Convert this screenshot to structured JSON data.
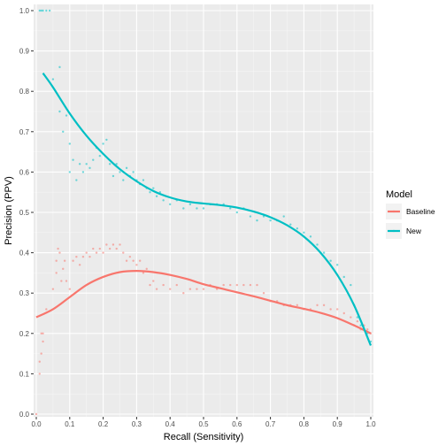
{
  "chart_data": {
    "type": "scatter",
    "xlabel": "Recall (Sensitivity)",
    "ylabel": "Precision (PPV)",
    "xlim": [
      0,
      1
    ],
    "ylim": [
      0,
      1
    ],
    "x_ticks": [
      "0.0",
      "0.1",
      "0.2",
      "0.3",
      "0.4",
      "0.5",
      "0.6",
      "0.7",
      "0.8",
      "0.9",
      "1.0"
    ],
    "y_ticks": [
      "0.0",
      "0.1",
      "0.2",
      "0.3",
      "0.4",
      "0.5",
      "0.6",
      "0.7",
      "0.8",
      "0.9",
      "1.0"
    ],
    "grid": true,
    "legend": {
      "title": "Model",
      "placement": "right",
      "entries": [
        "Baseline",
        "New"
      ]
    },
    "colors": {
      "Baseline": "#F8766D",
      "New": "#00BFC4",
      "panel": "#EBEBEB",
      "grid": "#FFFFFF"
    },
    "series": [
      {
        "name": "Baseline",
        "points": [
          [
            0.0,
            0.0
          ],
          [
            0.01,
            0.1
          ],
          [
            0.01,
            0.13
          ],
          [
            0.015,
            0.15
          ],
          [
            0.015,
            0.2
          ],
          [
            0.02,
            0.18
          ],
          [
            0.02,
            0.2
          ],
          [
            0.03,
            0.26
          ],
          [
            0.05,
            0.31
          ],
          [
            0.06,
            0.35
          ],
          [
            0.06,
            0.38
          ],
          [
            0.065,
            0.41
          ],
          [
            0.07,
            0.4
          ],
          [
            0.075,
            0.33
          ],
          [
            0.08,
            0.36
          ],
          [
            0.085,
            0.38
          ],
          [
            0.09,
            0.33
          ],
          [
            0.1,
            0.31
          ],
          [
            0.11,
            0.38
          ],
          [
            0.12,
            0.39
          ],
          [
            0.13,
            0.37
          ],
          [
            0.14,
            0.39
          ],
          [
            0.15,
            0.4
          ],
          [
            0.16,
            0.39
          ],
          [
            0.17,
            0.41
          ],
          [
            0.18,
            0.4
          ],
          [
            0.19,
            0.41
          ],
          [
            0.2,
            0.4
          ],
          [
            0.21,
            0.42
          ],
          [
            0.22,
            0.41
          ],
          [
            0.23,
            0.42
          ],
          [
            0.24,
            0.41
          ],
          [
            0.25,
            0.42
          ],
          [
            0.26,
            0.4
          ],
          [
            0.27,
            0.38
          ],
          [
            0.28,
            0.39
          ],
          [
            0.29,
            0.38
          ],
          [
            0.3,
            0.37
          ],
          [
            0.31,
            0.38
          ],
          [
            0.32,
            0.35
          ],
          [
            0.33,
            0.36
          ],
          [
            0.34,
            0.32
          ],
          [
            0.35,
            0.33
          ],
          [
            0.36,
            0.31
          ],
          [
            0.38,
            0.32
          ],
          [
            0.4,
            0.31
          ],
          [
            0.42,
            0.32
          ],
          [
            0.44,
            0.3
          ],
          [
            0.46,
            0.31
          ],
          [
            0.48,
            0.31
          ],
          [
            0.5,
            0.31
          ],
          [
            0.52,
            0.32
          ],
          [
            0.54,
            0.31
          ],
          [
            0.56,
            0.32
          ],
          [
            0.58,
            0.32
          ],
          [
            0.6,
            0.32
          ],
          [
            0.62,
            0.32
          ],
          [
            0.64,
            0.32
          ],
          [
            0.66,
            0.32
          ],
          [
            0.68,
            0.3
          ],
          [
            0.7,
            0.28
          ],
          [
            0.72,
            0.28
          ],
          [
            0.74,
            0.27
          ],
          [
            0.76,
            0.27
          ],
          [
            0.78,
            0.27
          ],
          [
            0.8,
            0.26
          ],
          [
            0.82,
            0.26
          ],
          [
            0.84,
            0.27
          ],
          [
            0.86,
            0.27
          ],
          [
            0.88,
            0.26
          ],
          [
            0.9,
            0.26
          ],
          [
            0.92,
            0.25
          ],
          [
            0.94,
            0.24
          ],
          [
            0.95,
            0.22
          ],
          [
            0.96,
            0.23
          ],
          [
            0.97,
            0.21
          ],
          [
            0.98,
            0.22
          ],
          [
            0.99,
            0.21
          ],
          [
            1.0,
            0.2
          ]
        ],
        "smooth": [
          [
            0.0,
            0.24
          ],
          [
            0.05,
            0.26
          ],
          [
            0.1,
            0.29
          ],
          [
            0.15,
            0.32
          ],
          [
            0.2,
            0.34
          ],
          [
            0.25,
            0.352
          ],
          [
            0.3,
            0.355
          ],
          [
            0.35,
            0.352
          ],
          [
            0.4,
            0.345
          ],
          [
            0.45,
            0.335
          ],
          [
            0.5,
            0.322
          ],
          [
            0.55,
            0.312
          ],
          [
            0.6,
            0.302
          ],
          [
            0.65,
            0.292
          ],
          [
            0.7,
            0.281
          ],
          [
            0.75,
            0.27
          ],
          [
            0.8,
            0.261
          ],
          [
            0.85,
            0.251
          ],
          [
            0.9,
            0.238
          ],
          [
            0.95,
            0.22
          ],
          [
            1.0,
            0.2
          ]
        ]
      },
      {
        "name": "New",
        "points": [
          [
            0.01,
            1.0
          ],
          [
            0.015,
            1.0
          ],
          [
            0.02,
            1.0
          ],
          [
            0.03,
            1.0
          ],
          [
            0.04,
            1.0
          ],
          [
            0.05,
            0.83
          ],
          [
            0.07,
            0.86
          ],
          [
            0.07,
            0.75
          ],
          [
            0.08,
            0.7
          ],
          [
            0.09,
            0.74
          ],
          [
            0.1,
            0.67
          ],
          [
            0.1,
            0.6
          ],
          [
            0.11,
            0.63
          ],
          [
            0.12,
            0.58
          ],
          [
            0.13,
            0.62
          ],
          [
            0.14,
            0.6
          ],
          [
            0.15,
            0.62
          ],
          [
            0.16,
            0.61
          ],
          [
            0.17,
            0.63
          ],
          [
            0.18,
            0.66
          ],
          [
            0.19,
            0.64
          ],
          [
            0.2,
            0.67
          ],
          [
            0.21,
            0.68
          ],
          [
            0.22,
            0.62
          ],
          [
            0.23,
            0.59
          ],
          [
            0.24,
            0.62
          ],
          [
            0.25,
            0.6
          ],
          [
            0.26,
            0.58
          ],
          [
            0.27,
            0.61
          ],
          [
            0.28,
            0.59
          ],
          [
            0.29,
            0.6
          ],
          [
            0.3,
            0.58
          ],
          [
            0.31,
            0.57
          ],
          [
            0.32,
            0.58
          ],
          [
            0.33,
            0.56
          ],
          [
            0.34,
            0.55
          ],
          [
            0.35,
            0.56
          ],
          [
            0.36,
            0.54
          ],
          [
            0.37,
            0.55
          ],
          [
            0.38,
            0.53
          ],
          [
            0.4,
            0.52
          ],
          [
            0.42,
            0.53
          ],
          [
            0.44,
            0.51
          ],
          [
            0.46,
            0.52
          ],
          [
            0.48,
            0.51
          ],
          [
            0.5,
            0.51
          ],
          [
            0.52,
            0.52
          ],
          [
            0.54,
            0.52
          ],
          [
            0.56,
            0.52
          ],
          [
            0.58,
            0.51
          ],
          [
            0.6,
            0.5
          ],
          [
            0.62,
            0.51
          ],
          [
            0.64,
            0.49
          ],
          [
            0.66,
            0.48
          ],
          [
            0.68,
            0.49
          ],
          [
            0.7,
            0.48
          ],
          [
            0.72,
            0.48
          ],
          [
            0.74,
            0.49
          ],
          [
            0.76,
            0.47
          ],
          [
            0.78,
            0.46
          ],
          [
            0.8,
            0.45
          ],
          [
            0.82,
            0.44
          ],
          [
            0.84,
            0.42
          ],
          [
            0.86,
            0.4
          ],
          [
            0.88,
            0.38
          ],
          [
            0.9,
            0.37
          ],
          [
            0.92,
            0.34
          ],
          [
            0.94,
            0.32
          ],
          [
            0.95,
            0.27
          ],
          [
            0.96,
            0.24
          ],
          [
            0.97,
            0.22
          ],
          [
            0.98,
            0.21
          ],
          [
            0.99,
            0.2
          ],
          [
            1.0,
            0.18
          ]
        ],
        "smooth": [
          [
            0.02,
            0.845
          ],
          [
            0.05,
            0.81
          ],
          [
            0.1,
            0.745
          ],
          [
            0.15,
            0.69
          ],
          [
            0.2,
            0.645
          ],
          [
            0.25,
            0.607
          ],
          [
            0.3,
            0.577
          ],
          [
            0.35,
            0.553
          ],
          [
            0.4,
            0.537
          ],
          [
            0.45,
            0.527
          ],
          [
            0.5,
            0.522
          ],
          [
            0.55,
            0.518
          ],
          [
            0.6,
            0.512
          ],
          [
            0.65,
            0.502
          ],
          [
            0.7,
            0.488
          ],
          [
            0.75,
            0.468
          ],
          [
            0.8,
            0.44
          ],
          [
            0.85,
            0.4
          ],
          [
            0.9,
            0.345
          ],
          [
            0.95,
            0.27
          ],
          [
            1.0,
            0.17
          ]
        ]
      }
    ]
  }
}
